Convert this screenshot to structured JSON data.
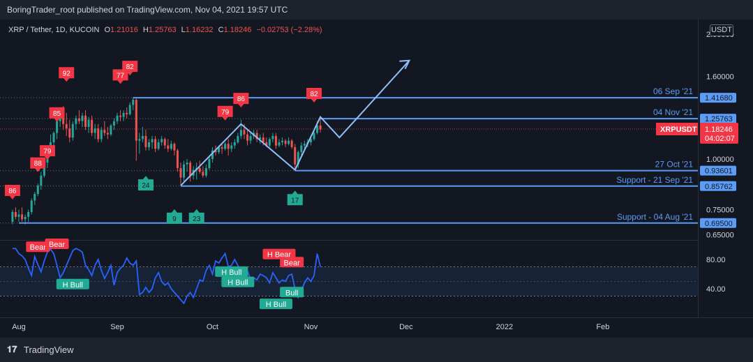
{
  "header": {
    "published": "BoringTrader_root published on TradingView.com, Nov 04, 2021 19:57 UTC"
  },
  "legend": {
    "symbol": "XRP / Tether, 1D, KUCOIN",
    "o_label": "O",
    "o": "1.21016",
    "h_label": "H",
    "h": "1.25763",
    "l_label": "L",
    "l": "1.16232",
    "c_label": "C",
    "c": "1.18246",
    "change": "−0.02753 (−2.28%)"
  },
  "currency_button": "USDT",
  "footer": {
    "brand": "TradingView"
  },
  "colors": {
    "up": "#26a69a",
    "down": "#ef5350",
    "line": "#5b9cf6",
    "rsi": "#2962ff",
    "bear": "#f23645",
    "bull": "#22ab94"
  },
  "chart_data": {
    "type": "candlestick",
    "symbol": "XRPUSDT",
    "price_axis": {
      "ticks": [
        "1.60000",
        "1.00000",
        "0.75000",
        "0.65000"
      ],
      "top_partial": "2.00000",
      "scale": "log"
    },
    "time_axis": {
      "ticks": [
        "Aug",
        "Sep",
        "Oct",
        "Nov",
        "Dec",
        "2022",
        "Feb"
      ]
    },
    "current": {
      "symbol": "XRPUSDT",
      "price": "1.18246",
      "countdown": "04:02:07"
    },
    "candles": [
      {
        "date": "2021-07-30",
        "o": 0.7,
        "h": 0.75,
        "l": 0.69,
        "c": 0.74
      },
      {
        "date": "2021-07-31",
        "o": 0.74,
        "h": 0.76,
        "l": 0.71,
        "c": 0.72
      },
      {
        "date": "2021-08-01",
        "o": 0.72,
        "h": 0.75,
        "l": 0.7,
        "c": 0.73
      },
      {
        "date": "2021-08-02",
        "o": 0.73,
        "h": 0.76,
        "l": 0.7,
        "c": 0.71
      },
      {
        "date": "2021-08-03",
        "o": 0.71,
        "h": 0.73,
        "l": 0.69,
        "c": 0.72
      },
      {
        "date": "2021-08-04",
        "o": 0.72,
        "h": 0.75,
        "l": 0.7,
        "c": 0.74
      },
      {
        "date": "2021-08-05",
        "o": 0.74,
        "h": 0.8,
        "l": 0.73,
        "c": 0.79
      },
      {
        "date": "2021-08-06",
        "o": 0.79,
        "h": 0.83,
        "l": 0.77,
        "c": 0.82
      },
      {
        "date": "2021-08-07",
        "o": 0.82,
        "h": 0.87,
        "l": 0.81,
        "c": 0.86
      },
      {
        "date": "2021-08-08",
        "o": 0.86,
        "h": 0.93,
        "l": 0.84,
        "c": 0.91
      },
      {
        "date": "2021-08-09",
        "o": 0.91,
        "h": 1.0,
        "l": 0.9,
        "c": 0.98
      },
      {
        "date": "2021-08-10",
        "o": 0.98,
        "h": 1.06,
        "l": 0.95,
        "c": 1.04
      },
      {
        "date": "2021-08-11",
        "o": 1.04,
        "h": 1.15,
        "l": 1.02,
        "c": 1.1
      },
      {
        "date": "2021-08-12",
        "o": 1.1,
        "h": 1.17,
        "l": 1.06,
        "c": 1.16
      },
      {
        "date": "2021-08-13",
        "o": 1.16,
        "h": 1.27,
        "l": 1.12,
        "c": 1.24
      },
      {
        "date": "2021-08-14",
        "o": 1.24,
        "h": 1.32,
        "l": 1.2,
        "c": 1.28
      },
      {
        "date": "2021-08-15",
        "o": 1.28,
        "h": 1.35,
        "l": 1.18,
        "c": 1.22
      },
      {
        "date": "2021-08-16",
        "o": 1.22,
        "h": 1.3,
        "l": 1.14,
        "c": 1.19
      },
      {
        "date": "2021-08-17",
        "o": 1.19,
        "h": 1.25,
        "l": 1.1,
        "c": 1.13
      },
      {
        "date": "2021-08-18",
        "o": 1.13,
        "h": 1.24,
        "l": 1.11,
        "c": 1.22
      },
      {
        "date": "2021-08-19",
        "o": 1.22,
        "h": 1.28,
        "l": 1.18,
        "c": 1.26
      },
      {
        "date": "2021-08-20",
        "o": 1.26,
        "h": 1.32,
        "l": 1.22,
        "c": 1.24
      },
      {
        "date": "2021-08-21",
        "o": 1.24,
        "h": 1.3,
        "l": 1.2,
        "c": 1.28
      },
      {
        "date": "2021-08-22",
        "o": 1.28,
        "h": 1.32,
        "l": 1.18,
        "c": 1.2
      },
      {
        "date": "2021-08-23",
        "o": 1.2,
        "h": 1.27,
        "l": 1.16,
        "c": 1.25
      },
      {
        "date": "2021-08-24",
        "o": 1.25,
        "h": 1.28,
        "l": 1.14,
        "c": 1.16
      },
      {
        "date": "2021-08-25",
        "o": 1.16,
        "h": 1.22,
        "l": 1.12,
        "c": 1.19
      },
      {
        "date": "2021-08-26",
        "o": 1.19,
        "h": 1.22,
        "l": 1.1,
        "c": 1.12
      },
      {
        "date": "2021-08-27",
        "o": 1.12,
        "h": 1.2,
        "l": 1.1,
        "c": 1.18
      },
      {
        "date": "2021-08-28",
        "o": 1.18,
        "h": 1.24,
        "l": 1.14,
        "c": 1.16
      },
      {
        "date": "2021-08-29",
        "o": 1.16,
        "h": 1.2,
        "l": 1.12,
        "c": 1.15
      },
      {
        "date": "2021-08-30",
        "o": 1.15,
        "h": 1.22,
        "l": 1.14,
        "c": 1.21
      },
      {
        "date": "2021-08-31",
        "o": 1.21,
        "h": 1.26,
        "l": 1.18,
        "c": 1.24
      },
      {
        "date": "2021-09-01",
        "o": 1.24,
        "h": 1.3,
        "l": 1.22,
        "c": 1.28
      },
      {
        "date": "2021-09-02",
        "o": 1.28,
        "h": 1.32,
        "l": 1.24,
        "c": 1.27
      },
      {
        "date": "2021-09-03",
        "o": 1.27,
        "h": 1.32,
        "l": 1.24,
        "c": 1.3
      },
      {
        "date": "2021-09-04",
        "o": 1.3,
        "h": 1.34,
        "l": 1.26,
        "c": 1.29
      },
      {
        "date": "2021-09-05",
        "o": 1.29,
        "h": 1.38,
        "l": 1.28,
        "c": 1.36
      },
      {
        "date": "2021-09-06",
        "o": 1.36,
        "h": 1.42,
        "l": 1.32,
        "c": 1.4
      },
      {
        "date": "2021-09-07",
        "o": 1.4,
        "h": 1.41,
        "l": 0.99,
        "c": 1.11
      },
      {
        "date": "2021-09-08",
        "o": 1.11,
        "h": 1.16,
        "l": 1.03,
        "c": 1.12
      },
      {
        "date": "2021-09-09",
        "o": 1.12,
        "h": 1.2,
        "l": 1.1,
        "c": 1.14
      },
      {
        "date": "2021-09-10",
        "o": 1.14,
        "h": 1.18,
        "l": 1.05,
        "c": 1.07
      },
      {
        "date": "2021-09-11",
        "o": 1.07,
        "h": 1.12,
        "l": 1.05,
        "c": 1.1
      },
      {
        "date": "2021-09-12",
        "o": 1.1,
        "h": 1.14,
        "l": 1.06,
        "c": 1.12
      },
      {
        "date": "2021-09-13",
        "o": 1.12,
        "h": 1.14,
        "l": 1.04,
        "c": 1.06
      },
      {
        "date": "2021-09-14",
        "o": 1.06,
        "h": 1.12,
        "l": 1.05,
        "c": 1.1
      },
      {
        "date": "2021-09-15",
        "o": 1.1,
        "h": 1.14,
        "l": 1.08,
        "c": 1.12
      },
      {
        "date": "2021-09-16",
        "o": 1.12,
        "h": 1.13,
        "l": 1.06,
        "c": 1.08
      },
      {
        "date": "2021-09-17",
        "o": 1.08,
        "h": 1.12,
        "l": 1.04,
        "c": 1.06
      },
      {
        "date": "2021-09-18",
        "o": 1.06,
        "h": 1.11,
        "l": 1.05,
        "c": 1.09
      },
      {
        "date": "2021-09-19",
        "o": 1.09,
        "h": 1.1,
        "l": 1.02,
        "c": 1.05
      },
      {
        "date": "2021-09-20",
        "o": 1.05,
        "h": 1.06,
        "l": 0.93,
        "c": 0.95
      },
      {
        "date": "2021-09-21",
        "o": 0.95,
        "h": 0.98,
        "l": 0.86,
        "c": 0.9
      },
      {
        "date": "2021-09-22",
        "o": 0.9,
        "h": 0.99,
        "l": 0.88,
        "c": 0.97
      },
      {
        "date": "2021-09-23",
        "o": 0.97,
        "h": 1.0,
        "l": 0.93,
        "c": 0.98
      },
      {
        "date": "2021-09-24",
        "o": 0.98,
        "h": 0.99,
        "l": 0.88,
        "c": 0.91
      },
      {
        "date": "2021-09-25",
        "o": 0.91,
        "h": 0.96,
        "l": 0.89,
        "c": 0.94
      },
      {
        "date": "2021-09-26",
        "o": 0.94,
        "h": 0.98,
        "l": 0.89,
        "c": 0.95
      },
      {
        "date": "2021-09-27",
        "o": 0.95,
        "h": 0.99,
        "l": 0.92,
        "c": 0.93
      },
      {
        "date": "2021-09-28",
        "o": 0.93,
        "h": 0.96,
        "l": 0.9,
        "c": 0.91
      },
      {
        "date": "2021-09-29",
        "o": 0.91,
        "h": 0.97,
        "l": 0.9,
        "c": 0.95
      },
      {
        "date": "2021-09-30",
        "o": 0.95,
        "h": 1.01,
        "l": 0.94,
        "c": 1.0
      },
      {
        "date": "2021-10-01",
        "o": 1.0,
        "h": 1.07,
        "l": 0.98,
        "c": 1.05
      },
      {
        "date": "2021-10-02",
        "o": 1.05,
        "h": 1.08,
        "l": 1.02,
        "c": 1.04
      },
      {
        "date": "2021-10-03",
        "o": 1.04,
        "h": 1.08,
        "l": 1.03,
        "c": 1.07
      },
      {
        "date": "2021-10-04",
        "o": 1.07,
        "h": 1.09,
        "l": 1.03,
        "c": 1.06
      },
      {
        "date": "2021-10-05",
        "o": 1.06,
        "h": 1.1,
        "l": 1.05,
        "c": 1.09
      },
      {
        "date": "2021-10-06",
        "o": 1.09,
        "h": 1.12,
        "l": 1.02,
        "c": 1.06
      },
      {
        "date": "2021-10-07",
        "o": 1.06,
        "h": 1.1,
        "l": 1.04,
        "c": 1.08
      },
      {
        "date": "2021-10-08",
        "o": 1.08,
        "h": 1.12,
        "l": 1.06,
        "c": 1.1
      },
      {
        "date": "2021-10-09",
        "o": 1.1,
        "h": 1.16,
        "l": 1.09,
        "c": 1.14
      },
      {
        "date": "2021-10-10",
        "o": 1.14,
        "h": 1.25,
        "l": 1.12,
        "c": 1.18
      },
      {
        "date": "2021-10-11",
        "o": 1.18,
        "h": 1.22,
        "l": 1.12,
        "c": 1.15
      },
      {
        "date": "2021-10-12",
        "o": 1.15,
        "h": 1.18,
        "l": 1.08,
        "c": 1.11
      },
      {
        "date": "2021-10-13",
        "o": 1.11,
        "h": 1.16,
        "l": 1.09,
        "c": 1.14
      },
      {
        "date": "2021-10-14",
        "o": 1.14,
        "h": 1.18,
        "l": 1.12,
        "c": 1.16
      },
      {
        "date": "2021-10-15",
        "o": 1.16,
        "h": 1.18,
        "l": 1.1,
        "c": 1.12
      },
      {
        "date": "2021-10-16",
        "o": 1.12,
        "h": 1.15,
        "l": 1.09,
        "c": 1.13
      },
      {
        "date": "2021-10-17",
        "o": 1.13,
        "h": 1.16,
        "l": 1.08,
        "c": 1.1
      },
      {
        "date": "2021-10-18",
        "o": 1.1,
        "h": 1.13,
        "l": 1.07,
        "c": 1.08
      },
      {
        "date": "2021-10-19",
        "o": 1.08,
        "h": 1.13,
        "l": 1.07,
        "c": 1.12
      },
      {
        "date": "2021-10-20",
        "o": 1.12,
        "h": 1.16,
        "l": 1.1,
        "c": 1.14
      },
      {
        "date": "2021-10-21",
        "o": 1.14,
        "h": 1.16,
        "l": 1.06,
        "c": 1.08
      },
      {
        "date": "2021-10-22",
        "o": 1.08,
        "h": 1.12,
        "l": 1.07,
        "c": 1.1
      },
      {
        "date": "2021-10-23",
        "o": 1.1,
        "h": 1.13,
        "l": 1.08,
        "c": 1.11
      },
      {
        "date": "2021-10-24",
        "o": 1.11,
        "h": 1.12,
        "l": 1.07,
        "c": 1.09
      },
      {
        "date": "2021-10-25",
        "o": 1.09,
        "h": 1.13,
        "l": 1.08,
        "c": 1.11
      },
      {
        "date": "2021-10-26",
        "o": 1.11,
        "h": 1.12,
        "l": 1.06,
        "c": 1.07
      },
      {
        "date": "2021-10-27",
        "o": 1.07,
        "h": 1.09,
        "l": 0.94,
        "c": 0.97
      },
      {
        "date": "2021-10-28",
        "o": 0.97,
        "h": 1.05,
        "l": 0.95,
        "c": 1.04
      },
      {
        "date": "2021-10-29",
        "o": 1.04,
        "h": 1.1,
        "l": 1.02,
        "c": 1.08
      },
      {
        "date": "2021-10-30",
        "o": 1.08,
        "h": 1.11,
        "l": 1.05,
        "c": 1.09
      },
      {
        "date": "2021-10-31",
        "o": 1.09,
        "h": 1.12,
        "l": 1.07,
        "c": 1.1
      },
      {
        "date": "2021-11-01",
        "o": 1.1,
        "h": 1.14,
        "l": 1.08,
        "c": 1.12
      },
      {
        "date": "2021-11-02",
        "o": 1.12,
        "h": 1.17,
        "l": 1.11,
        "c": 1.16
      },
      {
        "date": "2021-11-03",
        "o": 1.16,
        "h": 1.24,
        "l": 1.15,
        "c": 1.21
      },
      {
        "date": "2021-11-04",
        "o": 1.21016,
        "h": 1.25763,
        "l": 1.16232,
        "c": 1.18246
      }
    ],
    "levels": [
      {
        "label": "06 Sep '21",
        "price": "1.41680",
        "value": 1.4168,
        "start": "2021-09-06",
        "line_color": "#5b9cf6"
      },
      {
        "label": "04 Nov '21",
        "price": "1.25763",
        "value": 1.25763,
        "start": "2021-11-04",
        "line_color": "#5b9cf6"
      },
      {
        "label": "27 Oct '21",
        "price": "0.93601",
        "value": 0.93601,
        "start": "2021-10-27",
        "line_color": "#5b9cf6"
      },
      {
        "label": "Support - 21 Sep '21",
        "price": "0.85762",
        "value": 0.85762,
        "start": "2021-09-21",
        "line_color": "#5b9cf6"
      },
      {
        "label": "Support - 04 Aug '21",
        "price": "0.69500",
        "value": 0.695,
        "start": "2021-08-01",
        "line_color": "#5b9cf6"
      }
    ],
    "projection_path": [
      {
        "date": "2021-09-21",
        "price": 0.86
      },
      {
        "date": "2021-10-10",
        "price": 1.22
      },
      {
        "date": "2021-10-27",
        "price": 0.94
      },
      {
        "date": "2021-11-04",
        "price": 1.27
      },
      {
        "date": "2021-11-10",
        "price": 1.13
      },
      {
        "date": "2021-12-02",
        "price": 1.75
      }
    ],
    "signals": [
      {
        "type": "bear",
        "text": "86",
        "date": "2021-07-30",
        "price": 0.83
      },
      {
        "type": "bear",
        "text": "88",
        "date": "2021-08-07",
        "price": 0.97
      },
      {
        "type": "bear",
        "text": "79",
        "date": "2021-08-10",
        "price": 1.04
      },
      {
        "type": "bear",
        "text": "85",
        "date": "2021-08-13",
        "price": 1.29
      },
      {
        "type": "bear",
        "text": "92",
        "date": "2021-08-16",
        "price": 1.62
      },
      {
        "type": "bear",
        "text": "77",
        "date": "2021-09-02",
        "price": 1.6
      },
      {
        "type": "bear",
        "text": "82",
        "date": "2021-09-05",
        "price": 1.68
      },
      {
        "type": "bear",
        "text": "86",
        "date": "2021-10-10",
        "price": 1.4
      },
      {
        "type": "bear",
        "text": "79",
        "date": "2021-10-05",
        "price": 1.3
      },
      {
        "type": "bear",
        "text": "82",
        "date": "2021-11-02",
        "price": 1.44
      },
      {
        "type": "bull",
        "text": "24",
        "date": "2021-09-10",
        "price": 0.87
      },
      {
        "type": "bull",
        "text": "9",
        "date": "2021-09-19",
        "price": 0.72
      },
      {
        "type": "bull",
        "text": "23",
        "date": "2021-09-26",
        "price": 0.72
      },
      {
        "type": "bull",
        "text": "17",
        "date": "2021-10-27",
        "price": 0.8
      }
    ],
    "rsi": {
      "ticks": [
        "80.00",
        "40.00"
      ],
      "band": [
        30,
        70
      ],
      "values": [
        95,
        95,
        88,
        85,
        80,
        68,
        58,
        84,
        73,
        63,
        78,
        90,
        94,
        88,
        72,
        55,
        62,
        72,
        82,
        92,
        95,
        93,
        90,
        72,
        66,
        58,
        72,
        80,
        65,
        54,
        62,
        72,
        45,
        62,
        68,
        72,
        82,
        75,
        72,
        78,
        32,
        35,
        42,
        35,
        40,
        55,
        62,
        50,
        45,
        48,
        40,
        35,
        30,
        25,
        20,
        30,
        35,
        28,
        40,
        52,
        50,
        65,
        72,
        60,
        78,
        75,
        82,
        88,
        70,
        72,
        80,
        72,
        62,
        68,
        65,
        52,
        55,
        52,
        60,
        58,
        55,
        48,
        62,
        55,
        48,
        52,
        50,
        58,
        60,
        40,
        28,
        38,
        48,
        55,
        50,
        58,
        88,
        70
      ],
      "labels": [
        {
          "type": "bear",
          "text": "Bear",
          "date": "2021-08-07",
          "value": 96
        },
        {
          "type": "bear",
          "text": "Bear",
          "date": "2021-08-13",
          "value": 100
        },
        {
          "type": "bull",
          "text": "H Bull",
          "date": "2021-08-18",
          "value": 45
        },
        {
          "type": "bull",
          "text": "H Bull",
          "date": "2021-10-07",
          "value": 62
        },
        {
          "type": "bull",
          "text": "H Bull",
          "date": "2021-10-09",
          "value": 48
        },
        {
          "type": "bear",
          "text": "H Bear",
          "date": "2021-10-22",
          "value": 86
        },
        {
          "type": "bear",
          "text": "Bear",
          "date": "2021-10-26",
          "value": 75
        },
        {
          "type": "bull",
          "text": "Bull",
          "date": "2021-10-26",
          "value": 34
        },
        {
          "type": "bull",
          "text": "H Bull",
          "date": "2021-10-21",
          "value": 18
        }
      ]
    }
  }
}
